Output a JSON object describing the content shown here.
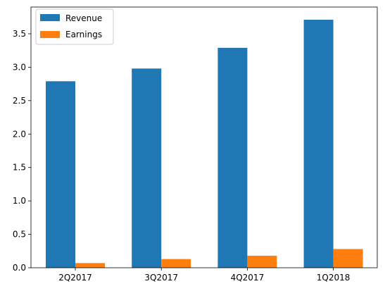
{
  "chart_data": {
    "type": "bar",
    "categories": [
      "2Q2017",
      "3Q2017",
      "4Q2017",
      "1Q2018"
    ],
    "series": [
      {
        "name": "Revenue",
        "color": "#1f77b4",
        "values": [
          2.79,
          2.98,
          3.29,
          3.71
        ]
      },
      {
        "name": "Earnings",
        "color": "#ff7f0e",
        "values": [
          0.07,
          0.13,
          0.18,
          0.28
        ]
      }
    ],
    "title": "",
    "xlabel": "",
    "ylabel": "",
    "ylim": [
      0,
      3.9
    ],
    "yticks": [
      "0.0",
      "0.5",
      "1.0",
      "1.5",
      "2.0",
      "2.5",
      "3.0",
      "3.5"
    ],
    "grid": false,
    "legend_position": "top-left"
  }
}
